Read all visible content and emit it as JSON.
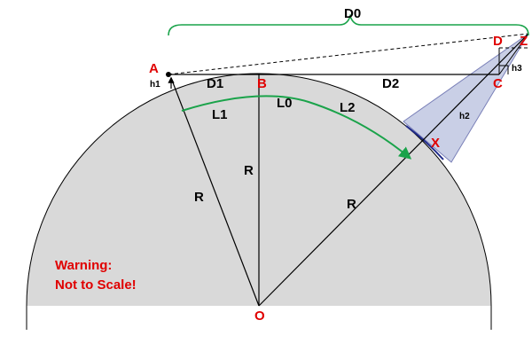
{
  "diagram": {
    "labels": {
      "D0": "D0",
      "D1": "D1",
      "D2": "D2",
      "L0": "L0",
      "L1": "L1",
      "L2": "L2",
      "R": "R",
      "h1": "h1",
      "h2": "h2",
      "h3": "h3"
    },
    "points": {
      "A": "A",
      "B": "B",
      "C": "C",
      "D": "D",
      "Z": "Z",
      "X": "X",
      "O": "O"
    },
    "warning": {
      "line1": "Warning:",
      "line2": "Not to Scale!"
    },
    "colors": {
      "earth_fill": "#d9d9d9",
      "earth_edge": "#000000",
      "shadow_fill": "#c9cfe6",
      "shadow_edge": "#7a80b8",
      "visible_arc": "#1f2a8a",
      "arc_arrow": "#1aa34a",
      "brace": "#1aa34a",
      "point_label": "#e00000",
      "warning": "#e00000"
    }
  }
}
